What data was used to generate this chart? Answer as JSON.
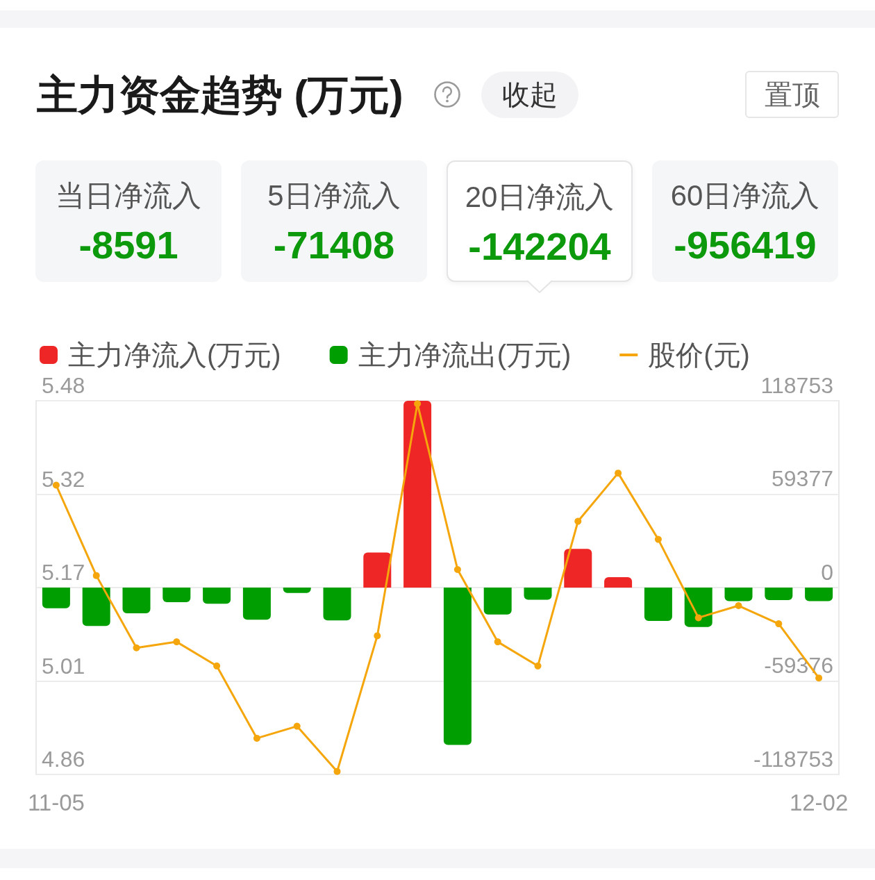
{
  "chart_data": [
    {
      "type": "other",
      "title": "主力资金趋势 (万元)",
      "annotations": [
        "收起",
        "置顶",
        "当日净流入",
        "-8591",
        "5日净流入",
        "-71408",
        "20日净流入",
        "-142204",
        "60日净流入",
        "-956419"
      ]
    },
    {
      "type": "bar",
      "categories": [
        "11-05",
        null,
        null,
        null,
        null,
        null,
        null,
        null,
        null,
        null,
        null,
        null,
        null,
        null,
        null,
        null,
        null,
        null,
        null,
        "12-02"
      ],
      "series": [
        {
          "name": "主力净流入(万元)",
          "color": "#ef2626",
          "axis": "y2",
          "values": [
            null,
            null,
            null,
            null,
            null,
            null,
            null,
            null,
            22300,
            118753,
            null,
            null,
            null,
            24600,
            6600,
            null,
            null,
            null,
            null,
            null
          ]
        },
        {
          "name": "主力净流出(万元)",
          "color": "#009e00",
          "axis": "y2",
          "values": [
            -13100,
            -24400,
            -16300,
            -9300,
            -10300,
            -20400,
            -3400,
            -20900,
            null,
            null,
            -100000,
            -17100,
            -7700,
            null,
            null,
            -21200,
            -25000,
            -8600,
            -8000,
            -8591
          ]
        },
        {
          "name": "股价(元)",
          "type": "line",
          "color": "#f4a60c",
          "values": [
            5.34,
            5.19,
            5.07,
            5.08,
            5.04,
            4.92,
            4.94,
            4.865,
            5.09,
            5.475,
            5.2,
            5.08,
            5.04,
            5.28,
            5.36,
            5.25,
            5.12,
            5.14,
            5.11,
            5.02
          ]
        }
      ],
      "ylim": [
        4.86,
        5.48
      ],
      "yticks": [
        4.86,
        {
          "value": 5.015,
          "label": "5.01"
        },
        5.17,
        {
          "value": 5.325,
          "label": "5.32"
        },
        5.48
      ],
      "y2lim": [
        -118753,
        118753
      ],
      "y2ticks": [
        -118753,
        -59376,
        0,
        59377,
        118753
      ],
      "grid": "y",
      "legend": "top left",
      "marker": "circle"
    }
  ]
}
